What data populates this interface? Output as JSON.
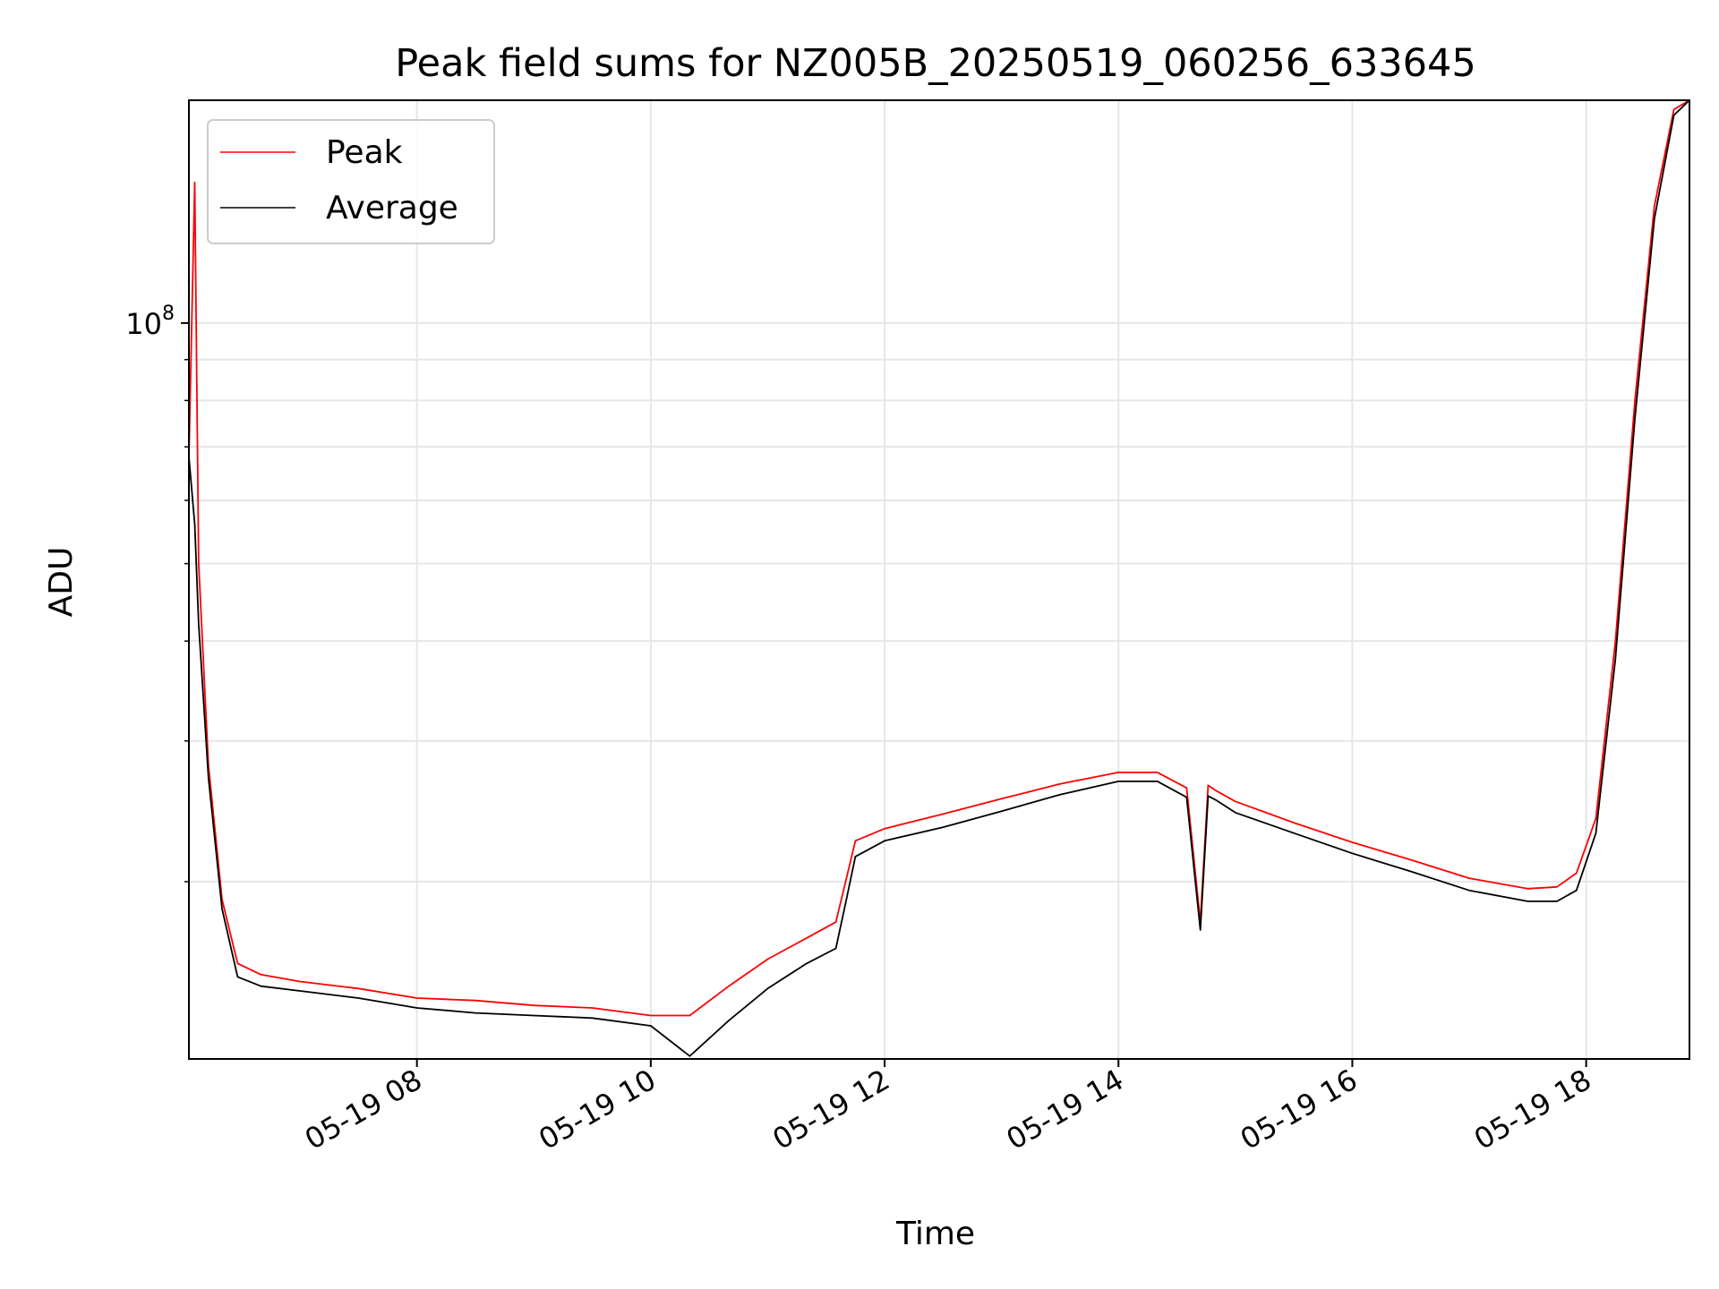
{
  "chart_data": {
    "type": "line",
    "title": "Peak field sums for NZ005B_20250519_060256_633645",
    "xlabel": "Time",
    "ylabel": "ADU",
    "yscale": "log",
    "ylim": [
      12000000,
      190000000
    ],
    "xlim": [
      "05-19 06:03",
      "05-19 18:53"
    ],
    "grid": true,
    "legend_position": "top-left",
    "x_ticks": [
      "05-19 08",
      "05-19 10",
      "05-19 12",
      "05-19 14",
      "05-19 16",
      "05-19 18"
    ],
    "y_ticks": [
      "10^8"
    ],
    "series": [
      {
        "name": "Peak",
        "color": "#ff0000",
        "x": [
          "05-19 06:03",
          "05-19 06:06",
          "05-19 06:08",
          "05-19 06:13",
          "05-19 06:20",
          "05-19 06:28",
          "05-19 06:40",
          "05-19 07:00",
          "05-19 07:30",
          "05-19 08:00",
          "05-19 08:30",
          "05-19 09:00",
          "05-19 09:30",
          "05-19 10:00",
          "05-19 10:20",
          "05-19 10:40",
          "05-19 11:00",
          "05-19 11:20",
          "05-19 11:35",
          "05-19 11:40",
          "05-19 11:45",
          "05-19 12:00",
          "05-19 12:30",
          "05-19 13:00",
          "05-19 13:30",
          "05-19 14:00",
          "05-19 14:20",
          "05-19 14:35",
          "05-19 14:42",
          "05-19 14:46",
          "05-19 14:50",
          "05-19 15:00",
          "05-19 15:30",
          "05-19 16:00",
          "05-19 16:30",
          "05-19 17:00",
          "05-19 17:30",
          "05-19 17:45",
          "05-19 17:55",
          "05-19 18:05",
          "05-19 18:15",
          "05-19 18:25",
          "05-19 18:35",
          "05-19 18:45",
          "05-19 18:53"
        ],
        "values": [
          68000000,
          150000000,
          50000000,
          28000000,
          19000000,
          15800000,
          15300000,
          15000000,
          14700000,
          14300000,
          14200000,
          14000000,
          13900000,
          13600000,
          13600000,
          14800000,
          16000000,
          17000000,
          17800000,
          20000000,
          22500000,
          23300000,
          24300000,
          25400000,
          26500000,
          27400000,
          27400000,
          26200000,
          17800000,
          26400000,
          26000000,
          25200000,
          23700000,
          22400000,
          21300000,
          20200000,
          19600000,
          19700000,
          20500000,
          24000000,
          40000000,
          80000000,
          140000000,
          185000000,
          190000000
        ]
      },
      {
        "name": "Average",
        "color": "#000000",
        "x": [
          "05-19 06:03",
          "05-19 06:06",
          "05-19 06:08",
          "05-19 06:13",
          "05-19 06:20",
          "05-19 06:28",
          "05-19 06:40",
          "05-19 07:00",
          "05-19 07:30",
          "05-19 08:00",
          "05-19 08:30",
          "05-19 09:00",
          "05-19 09:30",
          "05-19 10:00",
          "05-19 10:20",
          "05-19 10:40",
          "05-19 11:00",
          "05-19 11:20",
          "05-19 11:35",
          "05-19 11:40",
          "05-19 11:45",
          "05-19 12:00",
          "05-19 12:30",
          "05-19 13:00",
          "05-19 13:30",
          "05-19 14:00",
          "05-19 14:20",
          "05-19 14:35",
          "05-19 14:42",
          "05-19 14:46",
          "05-19 14:50",
          "05-19 15:00",
          "05-19 15:30",
          "05-19 16:00",
          "05-19 16:30",
          "05-19 17:00",
          "05-19 17:30",
          "05-19 17:45",
          "05-19 17:55",
          "05-19 18:05",
          "05-19 18:15",
          "05-19 18:25",
          "05-19 18:35",
          "05-19 18:45",
          "05-19 18:53"
        ],
        "values": [
          68000000,
          56000000,
          42000000,
          27000000,
          18500000,
          15200000,
          14800000,
          14600000,
          14300000,
          13900000,
          13700000,
          13600000,
          13500000,
          13200000,
          12100000,
          13400000,
          14700000,
          15800000,
          16500000,
          18800000,
          21500000,
          22500000,
          23400000,
          24500000,
          25700000,
          26700000,
          26700000,
          25500000,
          17400000,
          25600000,
          25300000,
          24400000,
          23000000,
          21700000,
          20600000,
          19500000,
          18900000,
          18900000,
          19500000,
          23000000,
          38000000,
          76000000,
          135000000,
          182000000,
          190000000
        ]
      }
    ]
  }
}
